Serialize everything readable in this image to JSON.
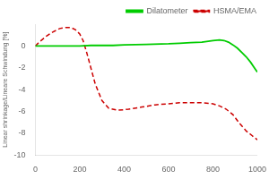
{
  "chart_data": {
    "type": "line",
    "ylabel": "Linear shrinkage/Lineare Schwindung [%]",
    "xlim": [
      0,
      1000
    ],
    "ylim": [
      -10,
      2
    ],
    "xticks": [
      0,
      200,
      400,
      600,
      800,
      1000
    ],
    "yticks": [
      0,
      -2,
      -4,
      -6,
      -8,
      -10
    ],
    "grid": false,
    "legend": "upper right",
    "series": [
      {
        "name": "Dilatometer",
        "color": "#00cc00",
        "line_style": "solid",
        "x": [
          0,
          50,
          100,
          150,
          200,
          250,
          300,
          350,
          400,
          500,
          600,
          650,
          700,
          750,
          800,
          830,
          850,
          870,
          890,
          910,
          930,
          950,
          970,
          990,
          1000
        ],
        "values": [
          0.0,
          0.0,
          0.0,
          0.0,
          0.0,
          0.05,
          0.05,
          0.05,
          0.1,
          0.15,
          0.2,
          0.25,
          0.3,
          0.35,
          0.5,
          0.55,
          0.5,
          0.35,
          0.1,
          -0.2,
          -0.6,
          -1.0,
          -1.5,
          -2.1,
          -2.4
        ]
      },
      {
        "name": "HSMA/EMA",
        "color": "#cc0000",
        "line_style": "dashed",
        "x": [
          0,
          20,
          50,
          80,
          110,
          140,
          160,
          180,
          200,
          215,
          230,
          250,
          270,
          300,
          330,
          370,
          420,
          480,
          540,
          600,
          650,
          700,
          750,
          800,
          830,
          860,
          890,
          920,
          950,
          975,
          1000
        ],
        "values": [
          0.0,
          0.4,
          0.9,
          1.3,
          1.6,
          1.7,
          1.7,
          1.5,
          1.1,
          0.5,
          -0.5,
          -2.0,
          -3.5,
          -5.0,
          -5.7,
          -5.9,
          -5.8,
          -5.6,
          -5.4,
          -5.3,
          -5.2,
          -5.2,
          -5.2,
          -5.3,
          -5.5,
          -5.8,
          -6.3,
          -7.1,
          -7.8,
          -8.2,
          -8.6
        ]
      }
    ]
  }
}
